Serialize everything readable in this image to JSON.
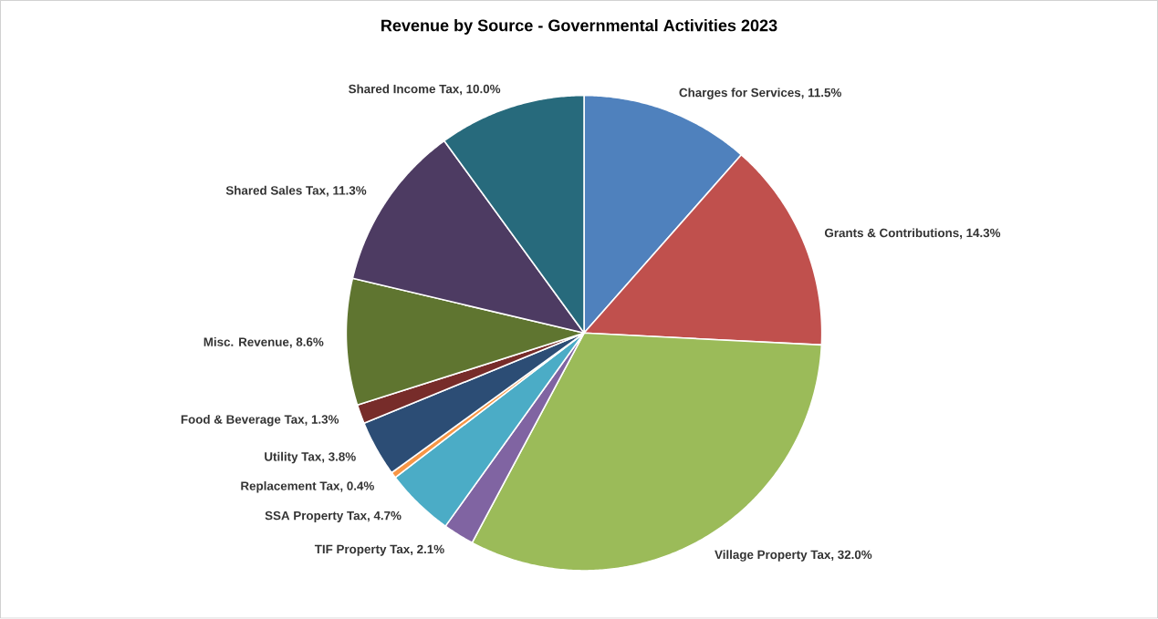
{
  "chart_data": {
    "type": "pie",
    "title": "Revenue by Source - Governmental Activities 2023",
    "categories": [
      "Charges for Services",
      "Grants & Contributions",
      "Village Property Tax",
      "TIF Property Tax",
      "SSA Property Tax",
      "Replacement Tax",
      "Utility Tax",
      "Food & Beverage Tax",
      "Misc. Revenue",
      "Shared Sales Tax",
      "Shared Income Tax"
    ],
    "values": [
      11.5,
      14.3,
      32.0,
      2.1,
      4.7,
      0.4,
      3.8,
      1.3,
      8.6,
      11.3,
      10.0
    ],
    "colors": [
      "#4f81bd",
      "#c0504d",
      "#9bbb59",
      "#8064a2",
      "#4bacc6",
      "#f79646",
      "#2c4d75",
      "#772c2a",
      "#5f7530",
      "#4d3b62",
      "#276a7c"
    ],
    "value_labels": [
      ", 11.5%",
      ", 14.3%",
      ", 32.0%",
      ", 2.1%",
      ", 4.7%",
      ", 0.4%",
      ", 3.8%",
      ", 1.3%",
      ", 8.6%",
      ", 11.3%",
      ", 10.0%"
    ]
  }
}
